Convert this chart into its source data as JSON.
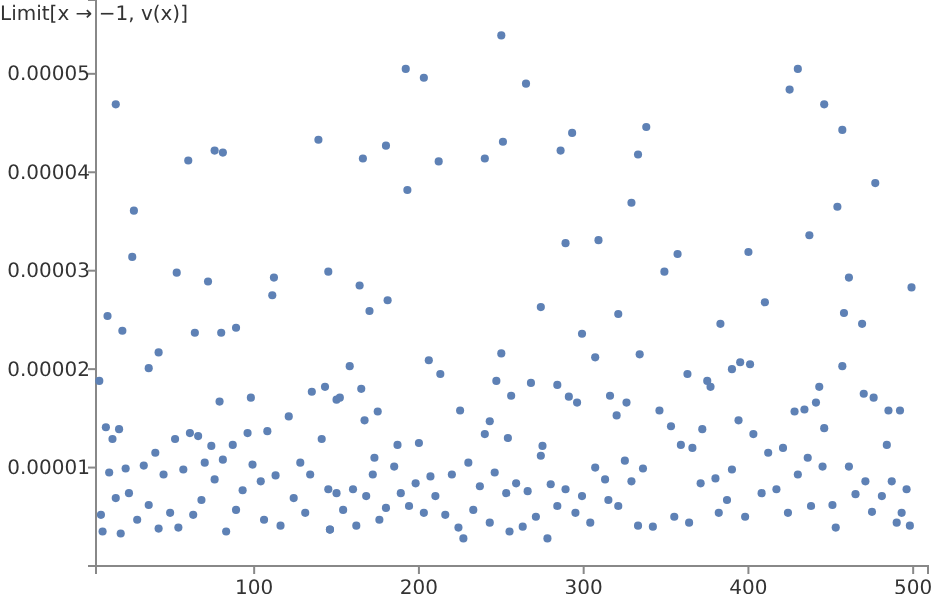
{
  "chart_data": {
    "type": "scatter",
    "ylabel": "Limit[x → −1, v(x)]",
    "marker": "circle",
    "grid": false,
    "xlim": [
      4,
      509
    ],
    "xticks": [
      100,
      200,
      300,
      400,
      500
    ],
    "ylim": [
      0,
      5.75e-05
    ],
    "yticks": [
      {
        "value": 1e-05,
        "label": "0.00001"
      },
      {
        "value": 2e-05,
        "label": "0.00002"
      },
      {
        "value": 3e-05,
        "label": "0.00003"
      },
      {
        "value": 4e-05,
        "label": "0.00004"
      },
      {
        "value": 5e-05,
        "label": "0.00005"
      }
    ],
    "series": [
      {
        "color": "#5e81b5",
        "x": [
          16,
          6,
          11,
          27,
          26,
          20,
          53,
          60,
          36,
          42,
          64,
          72,
          76,
          81,
          80,
          89,
          79,
          98,
          111,
          112,
          139,
          145,
          135,
          143,
          7,
          8,
          10,
          12,
          14,
          16,
          18,
          19,
          22,
          24,
          29,
          33,
          36,
          40,
          42,
          45,
          49,
          52,
          54,
          57,
          61,
          63,
          66,
          68,
          70,
          74,
          76,
          81,
          83,
          87,
          89,
          93,
          96,
          99,
          104,
          106,
          108,
          113,
          116,
          121,
          124,
          128,
          131,
          134,
          141,
          145,
          146,
          150,
          164,
          166,
          170,
          180,
          181,
          192,
          193,
          203,
          206,
          212,
          213,
          240,
          250,
          251,
          250,
          265,
          274,
          286,
          293,
          289,
          299,
          307,
          309,
          321,
          329,
          333,
          338,
          334,
          152,
          158,
          165,
          167,
          175,
          173,
          187,
          200,
          225,
          243,
          247,
          254,
          256,
          268,
          275,
          284,
          291,
          296,
          316,
          320,
          326,
          146,
          150,
          154,
          160,
          162,
          168,
          172,
          176,
          180,
          185,
          189,
          194,
          198,
          203,
          207,
          210,
          216,
          220,
          224,
          227,
          230,
          233,
          237,
          240,
          243,
          246,
          253,
          255,
          259,
          263,
          266,
          271,
          274,
          278,
          280,
          284,
          289,
          295,
          299,
          304,
          307,
          313,
          315,
          321,
          325,
          329,
          333,
          336,
          349,
          357,
          363,
          375,
          377,
          383,
          390,
          395,
          401,
          400,
          410,
          425,
          430,
          437,
          446,
          457,
          454,
          461,
          458,
          457,
          469,
          477,
          470,
          476,
          499,
          485,
          492,
          428,
          434,
          443,
          441,
          446,
          346,
          353,
          359,
          366,
          372,
          380,
          387,
          394,
          398,
          403,
          408,
          412,
          417,
          421,
          424,
          430,
          436,
          438,
          445,
          451,
          453,
          461,
          465,
          471,
          475,
          481,
          484,
          487,
          490,
          493,
          496,
          498,
          342,
          355,
          364,
          371,
          382,
          390
        ],
        "values": [
          4.69e-05,
          1.88e-05,
          2.54e-05,
          3.61e-05,
          3.14e-05,
          2.39e-05,
          2.98e-05,
          4.12e-05,
          2.01e-05,
          2.17e-05,
          2.37e-05,
          2.89e-05,
          4.22e-05,
          4.2e-05,
          2.37e-05,
          2.42e-05,
          1.67e-05,
          1.71e-05,
          2.75e-05,
          2.93e-05,
          4.33e-05,
          2.99e-05,
          1.77e-05,
          1.82e-05,
          5.2e-06,
          3.5e-06,
          1.41e-05,
          9.5e-06,
          1.29e-05,
          6.9e-06,
          1.39e-05,
          3.3e-06,
          9.9e-06,
          7.4e-06,
          4.7e-06,
          1.02e-05,
          6.2e-06,
          1.15e-05,
          3.8e-06,
          9.3e-06,
          5.4e-06,
          1.29e-05,
          3.9e-06,
          9.8e-06,
          1.35e-05,
          5.2e-06,
          1.32e-05,
          6.7e-06,
          1.05e-05,
          1.22e-05,
          8.8e-06,
          1.08e-05,
          3.5e-06,
          1.23e-05,
          5.7e-06,
          7.7e-06,
          1.35e-05,
          1.03e-05,
          8.6e-06,
          4.7e-06,
          1.37e-05,
          9.2e-06,
          4.1e-06,
          1.52e-05,
          6.9e-06,
          1.05e-05,
          5.4e-06,
          9.3e-06,
          1.29e-05,
          7.8e-06,
          3.7e-06,
          1.69e-05,
          2.85e-05,
          4.14e-05,
          2.59e-05,
          4.27e-05,
          2.7e-05,
          5.05e-05,
          3.82e-05,
          4.96e-05,
          2.09e-05,
          4.11e-05,
          1.95e-05,
          4.14e-05,
          5.39e-05,
          4.31e-05,
          2.16e-05,
          4.9e-05,
          2.63e-05,
          4.22e-05,
          4.4e-05,
          3.28e-05,
          2.36e-05,
          2.12e-05,
          3.31e-05,
          2.56e-05,
          3.69e-05,
          4.18e-05,
          4.46e-05,
          2.15e-05,
          1.71e-05,
          2.03e-05,
          1.8e-05,
          1.48e-05,
          1.57e-05,
          1.1e-05,
          1.23e-05,
          1.25e-05,
          1.58e-05,
          1.47e-05,
          1.88e-05,
          1.3e-05,
          1.73e-05,
          1.86e-05,
          1.22e-05,
          1.84e-05,
          1.72e-05,
          1.66e-05,
          1.73e-05,
          1.53e-05,
          1.66e-05,
          3.7e-06,
          7.4e-06,
          5.7e-06,
          7.8e-06,
          4.1e-06,
          7.1e-06,
          9.3e-06,
          4.7e-06,
          5.9e-06,
          1.01e-05,
          7.4e-06,
          6.1e-06,
          8.4e-06,
          5.4e-06,
          9.1e-06,
          7.1e-06,
          5.2e-06,
          9.3e-06,
          3.9e-06,
          2.8e-06,
          1.05e-05,
          5.7e-06,
          8.1e-06,
          1.34e-05,
          4.4e-06,
          9.5e-06,
          7.4e-06,
          3.5e-06,
          8.4e-06,
          4e-06,
          7.6e-06,
          5e-06,
          1.12e-05,
          2.8e-06,
          8.3e-06,
          6.1e-06,
          7.8e-06,
          5.4e-06,
          7.1e-06,
          4.4e-06,
          1e-05,
          8.8e-06,
          6.7e-06,
          6.1e-06,
          1.07e-05,
          8.6e-06,
          4.1e-06,
          9.9e-06,
          2.99e-05,
          3.17e-05,
          1.95e-05,
          1.88e-05,
          1.82e-05,
          2.46e-05,
          2e-05,
          2.07e-05,
          2.05e-05,
          3.19e-05,
          2.68e-05,
          4.84e-05,
          5.05e-05,
          3.36e-05,
          4.69e-05,
          4.43e-05,
          3.65e-05,
          2.93e-05,
          2.57e-05,
          2.03e-05,
          2.46e-05,
          3.89e-05,
          1.75e-05,
          1.71e-05,
          2.83e-05,
          1.58e-05,
          1.58e-05,
          1.57e-05,
          1.59e-05,
          1.82e-05,
          1.66e-05,
          1.4e-05,
          1.58e-05,
          1.42e-05,
          1.23e-05,
          1.2e-05,
          1.39e-05,
          8.9e-06,
          6.7e-06,
          1.48e-05,
          5e-06,
          1.34e-05,
          7.4e-06,
          1.15e-05,
          7.8e-06,
          1.2e-05,
          5.4e-06,
          9.3e-06,
          1.1e-05,
          6.1e-06,
          1.01e-05,
          6.2e-06,
          3.9e-06,
          1.01e-05,
          7.3e-06,
          8.6e-06,
          5.5e-06,
          7.1e-06,
          1.23e-05,
          8.6e-06,
          4.4e-06,
          5.4e-06,
          7.8e-06,
          4.1e-06,
          4e-06,
          5e-06,
          4.4e-06,
          8.4e-06,
          5.4e-06,
          9.8e-06
        ]
      }
    ]
  }
}
